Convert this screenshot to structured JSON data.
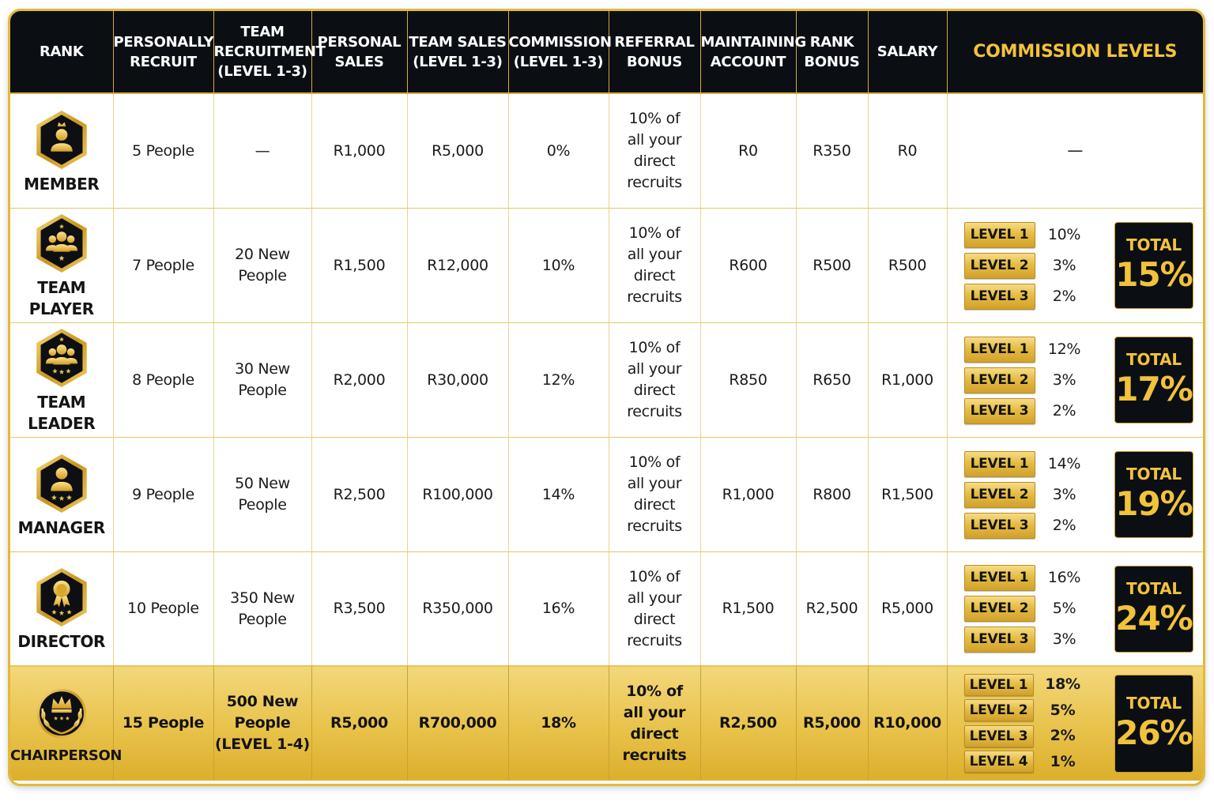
{
  "colors": {
    "header_bg": "#0b0f14",
    "gold": "#f2c23b",
    "grid": "#ecd489",
    "border": "#e2b93b"
  },
  "headers": {
    "rank": [
      "RANK"
    ],
    "personally_recruit": [
      "PERSONALLY",
      "RECRUIT"
    ],
    "team_recruitment": [
      "TEAM",
      "RECRUITMENT",
      "(LEVEL 1-3)"
    ],
    "personal_sales": [
      "PERSONAL",
      "SALES"
    ],
    "team_sales": [
      "TEAM SALES",
      "(LEVEL 1-3)"
    ],
    "commission": [
      "COMMISSION",
      "(LEVEL 1-3)"
    ],
    "referral_bonus": [
      "REFERRAL",
      "BONUS"
    ],
    "maintaining_account": [
      "MAINTAINING",
      "ACCOUNT"
    ],
    "rank_bonus": [
      "RANK",
      "BONUS"
    ],
    "salary": [
      "SALARY"
    ],
    "commission_levels": [
      "COMMISSION LEVELS"
    ]
  },
  "total_label": "TOTAL",
  "rows": [
    {
      "rank": "MEMBER",
      "icon": "person-crown-badge-icon",
      "personally_recruit": [
        "5 People"
      ],
      "team_recruitment": [
        "—"
      ],
      "personal_sales": "R1,000",
      "team_sales": "R5,000",
      "commission": "0%",
      "referral_bonus": [
        "10% of",
        "all your",
        "direct",
        "recruits"
      ],
      "maintaining_account": "R0",
      "rank_bonus": "R350",
      "salary": "R0",
      "levels": [],
      "levels_placeholder": "—",
      "total": ""
    },
    {
      "rank": "TEAM PLAYER",
      "icon": "group-star-badge-icon",
      "personally_recruit": [
        "7 People"
      ],
      "team_recruitment": [
        "20 New",
        "People"
      ],
      "personal_sales": "R1,500",
      "team_sales": "R12,000",
      "commission": "10%",
      "referral_bonus": [
        "10% of",
        "all your",
        "direct",
        "recruits"
      ],
      "maintaining_account": "R600",
      "rank_bonus": "R500",
      "salary": "R500",
      "levels": [
        {
          "label": "LEVEL 1",
          "pct": "10%"
        },
        {
          "label": "LEVEL 2",
          "pct": "3%"
        },
        {
          "label": "LEVEL 3",
          "pct": "2%"
        }
      ],
      "total": "15%"
    },
    {
      "rank": "TEAM LEADER",
      "icon": "group-three-stars-badge-icon",
      "personally_recruit": [
        "8 People"
      ],
      "team_recruitment": [
        "30 New",
        "People"
      ],
      "personal_sales": "R2,000",
      "team_sales": "R30,000",
      "commission": "12%",
      "referral_bonus": [
        "10% of",
        "all your",
        "direct",
        "recruits"
      ],
      "maintaining_account": "R850",
      "rank_bonus": "R650",
      "salary": "R1,000",
      "levels": [
        {
          "label": "LEVEL 1",
          "pct": "12%"
        },
        {
          "label": "LEVEL 2",
          "pct": "3%"
        },
        {
          "label": "LEVEL 3",
          "pct": "2%"
        }
      ],
      "total": "17%"
    },
    {
      "rank": "MANAGER",
      "icon": "person-three-stars-badge-icon",
      "personally_recruit": [
        "9 People"
      ],
      "team_recruitment": [
        "50 New",
        "People"
      ],
      "personal_sales": "R2,500",
      "team_sales": "R100,000",
      "commission": "14%",
      "referral_bonus": [
        "10% of",
        "all your",
        "direct",
        "recruits"
      ],
      "maintaining_account": "R1,000",
      "rank_bonus": "R800",
      "salary": "R1,500",
      "levels": [
        {
          "label": "LEVEL 1",
          "pct": "14%"
        },
        {
          "label": "LEVEL 2",
          "pct": "3%"
        },
        {
          "label": "LEVEL 3",
          "pct": "2%"
        }
      ],
      "total": "19%"
    },
    {
      "rank": "DIRECTOR",
      "icon": "medal-stars-badge-icon",
      "personally_recruit": [
        "10 People"
      ],
      "team_recruitment": [
        "350 New",
        "People"
      ],
      "personal_sales": "R3,500",
      "team_sales": "R350,000",
      "commission": "16%",
      "referral_bonus": [
        "10% of",
        "all your",
        "direct",
        "recruits"
      ],
      "maintaining_account": "R1,500",
      "rank_bonus": "R2,500",
      "salary": "R5,000",
      "levels": [
        {
          "label": "LEVEL 1",
          "pct": "16%"
        },
        {
          "label": "LEVEL 2",
          "pct": "5%"
        },
        {
          "label": "LEVEL 3",
          "pct": "3%"
        }
      ],
      "total": "24%"
    },
    {
      "rank": "CHAIRPERSON",
      "icon": "crown-laurel-badge-icon",
      "personally_recruit": [
        "15 People"
      ],
      "team_recruitment": [
        "500 New",
        "People",
        "(LEVEL 1-4)"
      ],
      "personal_sales": "R5,000",
      "team_sales": "R700,000",
      "commission": "18%",
      "referral_bonus": [
        "10% of",
        "all your",
        "direct",
        "recruits"
      ],
      "maintaining_account": "R2,500",
      "rank_bonus": "R5,000",
      "salary": "R10,000",
      "levels": [
        {
          "label": "LEVEL 1",
          "pct": "18%"
        },
        {
          "label": "LEVEL 2",
          "pct": "5%"
        },
        {
          "label": "LEVEL 3",
          "pct": "2%"
        },
        {
          "label": "LEVEL 4",
          "pct": "1%"
        }
      ],
      "total": "26%"
    }
  ]
}
